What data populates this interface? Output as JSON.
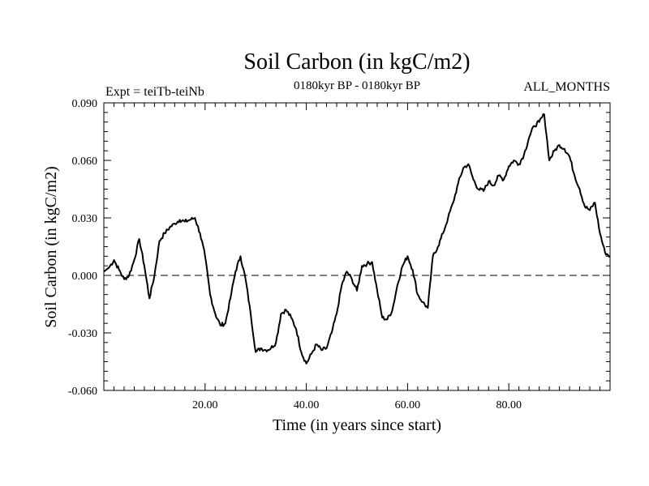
{
  "chart_data": {
    "type": "line",
    "title": "Soil Carbon (in kgC/m2)",
    "subtitle_left": "Expt = teiTb-teiNb",
    "subtitle_center": "0180kyr BP - 0180kyr BP",
    "subtitle_right": "ALL_MONTHS",
    "xlabel": "Time (in years since start)",
    "ylabel": "Soil Carbon (in kgC/m2)",
    "xlim": [
      0,
      100
    ],
    "ylim": [
      -0.06,
      0.09
    ],
    "x_ticks": [
      20,
      40,
      60,
      80
    ],
    "x_tick_labels": [
      "20.00",
      "40.00",
      "60.00",
      "80.00"
    ],
    "y_ticks": [
      -0.06,
      -0.03,
      0.0,
      0.03,
      0.06,
      0.09
    ],
    "y_tick_labels": [
      "-0.060",
      "-0.030",
      "0.000",
      "0.030",
      "0.060",
      "0.090"
    ],
    "reference_line": 0.0,
    "series": [
      {
        "name": "Soil Carbon",
        "color": "#000000",
        "points": [
          [
            0,
            0.002
          ],
          [
            1,
            0.004
          ],
          [
            2,
            0.008
          ],
          [
            3,
            0.003
          ],
          [
            4,
            -0.002
          ],
          [
            5,
            0.0
          ],
          [
            6,
            0.008
          ],
          [
            7,
            0.019
          ],
          [
            8,
            0.005
          ],
          [
            9,
            -0.012
          ],
          [
            10,
            0.0
          ],
          [
            11,
            0.018
          ],
          [
            12,
            0.022
          ],
          [
            13,
            0.025
          ],
          [
            14,
            0.027
          ],
          [
            15,
            0.029
          ],
          [
            16,
            0.028
          ],
          [
            17,
            0.029
          ],
          [
            18,
            0.03
          ],
          [
            19,
            0.022
          ],
          [
            20,
            0.01
          ],
          [
            21,
            -0.01
          ],
          [
            22,
            -0.02
          ],
          [
            23,
            -0.026
          ],
          [
            24,
            -0.025
          ],
          [
            25,
            -0.012
          ],
          [
            26,
            0.002
          ],
          [
            27,
            0.01
          ],
          [
            28,
            -0.002
          ],
          [
            29,
            -0.02
          ],
          [
            30,
            -0.04
          ],
          [
            31,
            -0.038
          ],
          [
            32,
            -0.039
          ],
          [
            33,
            -0.038
          ],
          [
            34,
            -0.035
          ],
          [
            35,
            -0.02
          ],
          [
            36,
            -0.018
          ],
          [
            37,
            -0.022
          ],
          [
            38,
            -0.028
          ],
          [
            39,
            -0.04
          ],
          [
            40,
            -0.046
          ],
          [
            41,
            -0.041
          ],
          [
            42,
            -0.036
          ],
          [
            43,
            -0.039
          ],
          [
            44,
            -0.038
          ],
          [
            45,
            -0.03
          ],
          [
            46,
            -0.02
          ],
          [
            47,
            -0.005
          ],
          [
            48,
            0.002
          ],
          [
            49,
            -0.002
          ],
          [
            50,
            -0.008
          ],
          [
            51,
            0.005
          ],
          [
            52,
            0.006
          ],
          [
            53,
            0.007
          ],
          [
            54,
            -0.008
          ],
          [
            55,
            -0.022
          ],
          [
            56,
            -0.023
          ],
          [
            57,
            -0.018
          ],
          [
            58,
            -0.005
          ],
          [
            59,
            0.005
          ],
          [
            60,
            0.01
          ],
          [
            61,
            0.003
          ],
          [
            62,
            -0.01
          ],
          [
            63,
            -0.014
          ],
          [
            64,
            -0.017
          ],
          [
            65,
            0.01
          ],
          [
            66,
            0.015
          ],
          [
            67,
            0.022
          ],
          [
            68,
            0.03
          ],
          [
            69,
            0.038
          ],
          [
            70,
            0.048
          ],
          [
            71,
            0.056
          ],
          [
            72,
            0.058
          ],
          [
            73,
            0.05
          ],
          [
            74,
            0.045
          ],
          [
            75,
            0.044
          ],
          [
            76,
            0.049
          ],
          [
            77,
            0.047
          ],
          [
            78,
            0.052
          ],
          [
            79,
            0.05
          ],
          [
            80,
            0.057
          ],
          [
            81,
            0.06
          ],
          [
            82,
            0.058
          ],
          [
            83,
            0.063
          ],
          [
            84,
            0.072
          ],
          [
            85,
            0.078
          ],
          [
            86,
            0.08
          ],
          [
            87,
            0.084
          ],
          [
            88,
            0.06
          ],
          [
            89,
            0.065
          ],
          [
            90,
            0.068
          ],
          [
            91,
            0.066
          ],
          [
            92,
            0.062
          ],
          [
            93,
            0.052
          ],
          [
            94,
            0.045
          ],
          [
            95,
            0.036
          ],
          [
            96,
            0.034
          ],
          [
            97,
            0.038
          ],
          [
            98,
            0.022
          ],
          [
            99,
            0.012
          ],
          [
            100,
            0.01
          ]
        ]
      }
    ]
  }
}
